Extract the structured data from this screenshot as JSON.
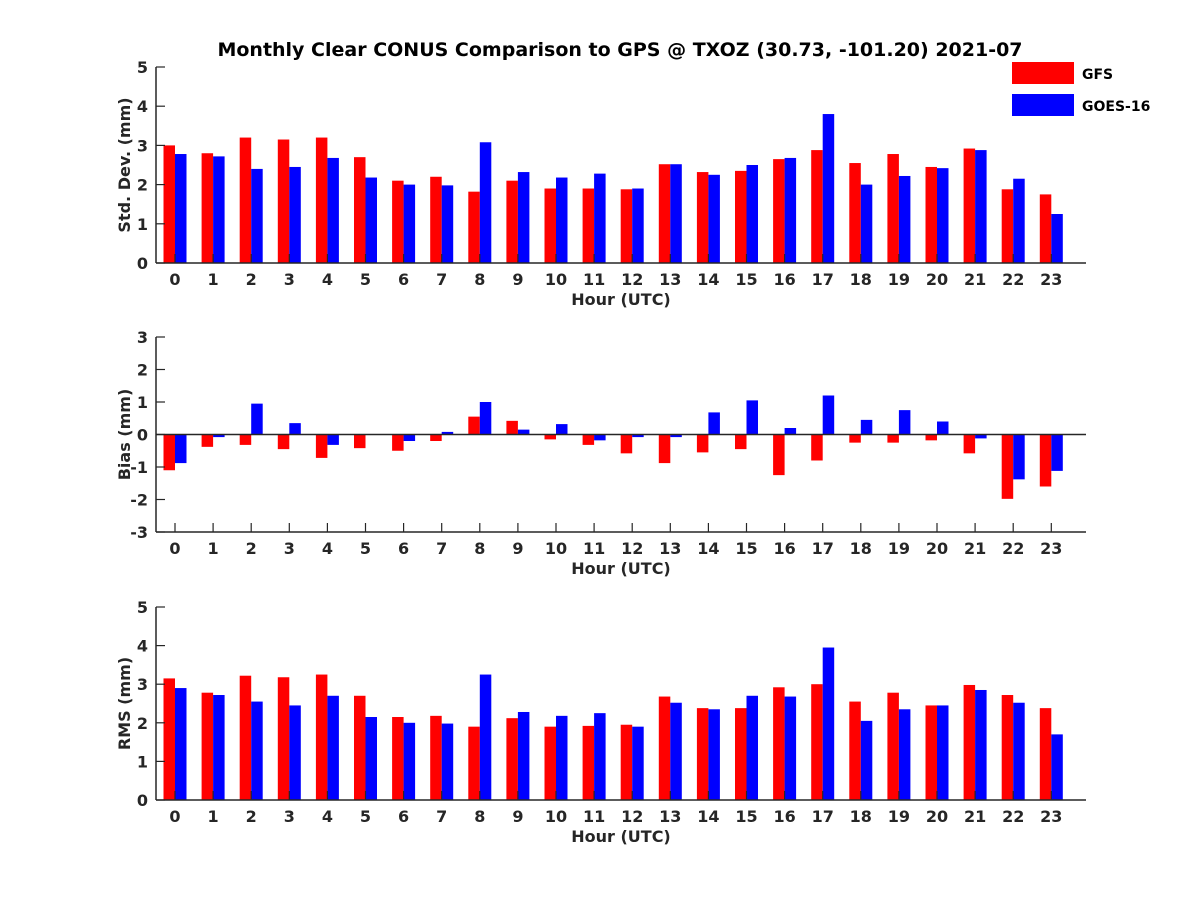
{
  "title": "Monthly Clear CONUS Comparison to GPS @ TXOZ (30.73, -101.20) 2021-07",
  "legend": [
    {
      "label": "GFS",
      "color": "#ff0000"
    },
    {
      "label": "GOES-16",
      "color": "#0000ff"
    }
  ],
  "chart_data": [
    {
      "type": "bar",
      "xlabel": "Hour (UTC)",
      "ylabel": "Std. Dev. (mm)",
      "ylim": [
        0,
        5
      ],
      "yticks": [
        0,
        1,
        2,
        3,
        4,
        5
      ],
      "categories": [
        "0",
        "1",
        "2",
        "3",
        "4",
        "5",
        "6",
        "7",
        "8",
        "9",
        "10",
        "11",
        "12",
        "13",
        "14",
        "15",
        "16",
        "17",
        "18",
        "19",
        "20",
        "21",
        "22",
        "23"
      ],
      "series": [
        {
          "name": "GFS",
          "values": [
            3.0,
            2.8,
            3.2,
            3.15,
            3.2,
            2.7,
            2.1,
            2.2,
            1.82,
            2.1,
            1.9,
            1.9,
            1.88,
            2.52,
            2.32,
            2.35,
            2.65,
            2.88,
            2.55,
            2.78,
            2.45,
            2.92,
            1.88,
            1.75
          ]
        },
        {
          "name": "GOES-16",
          "values": [
            2.78,
            2.72,
            2.4,
            2.45,
            2.68,
            2.18,
            2.0,
            1.98,
            3.08,
            2.32,
            2.18,
            2.28,
            1.9,
            2.52,
            2.25,
            2.5,
            2.68,
            3.8,
            2.0,
            2.22,
            2.42,
            2.88,
            2.15,
            1.25
          ]
        }
      ]
    },
    {
      "type": "bar",
      "xlabel": "Hour (UTC)",
      "ylabel": "Bias (mm)",
      "ylim": [
        -3,
        3
      ],
      "yticks": [
        -3,
        -2,
        -1,
        0,
        1,
        2,
        3
      ],
      "categories": [
        "0",
        "1",
        "2",
        "3",
        "4",
        "5",
        "6",
        "7",
        "8",
        "9",
        "10",
        "11",
        "12",
        "13",
        "14",
        "15",
        "16",
        "17",
        "18",
        "19",
        "20",
        "21",
        "22",
        "23"
      ],
      "series": [
        {
          "name": "GFS",
          "values": [
            -1.1,
            -0.38,
            -0.32,
            -0.45,
            -0.72,
            -0.42,
            -0.5,
            -0.2,
            0.55,
            0.42,
            -0.15,
            -0.32,
            -0.58,
            -0.88,
            -0.55,
            -0.45,
            -1.25,
            -0.8,
            -0.25,
            -0.25,
            -0.18,
            -0.58,
            -1.98,
            -1.6
          ]
        },
        {
          "name": "GOES-16",
          "values": [
            -0.88,
            -0.08,
            0.95,
            0.35,
            -0.32,
            0.0,
            -0.2,
            0.08,
            1.0,
            0.15,
            0.32,
            -0.18,
            -0.08,
            -0.08,
            0.68,
            1.05,
            0.2,
            1.2,
            0.45,
            0.75,
            0.4,
            -0.12,
            -1.38,
            -1.12
          ]
        }
      ]
    },
    {
      "type": "bar",
      "xlabel": "Hour (UTC)",
      "ylabel": "RMS (mm)",
      "ylim": [
        0,
        5
      ],
      "yticks": [
        0,
        1,
        2,
        3,
        4,
        5
      ],
      "categories": [
        "0",
        "1",
        "2",
        "3",
        "4",
        "5",
        "6",
        "7",
        "8",
        "9",
        "10",
        "11",
        "12",
        "13",
        "14",
        "15",
        "16",
        "17",
        "18",
        "19",
        "20",
        "21",
        "22",
        "23"
      ],
      "series": [
        {
          "name": "GFS",
          "values": [
            3.15,
            2.78,
            3.22,
            3.18,
            3.25,
            2.7,
            2.15,
            2.18,
            1.9,
            2.12,
            1.9,
            1.92,
            1.95,
            2.68,
            2.38,
            2.38,
            2.92,
            3.0,
            2.55,
            2.78,
            2.45,
            2.98,
            2.72,
            2.38
          ]
        },
        {
          "name": "GOES-16",
          "values": [
            2.9,
            2.72,
            2.55,
            2.45,
            2.7,
            2.15,
            2.0,
            1.98,
            3.25,
            2.28,
            2.18,
            2.25,
            1.9,
            2.52,
            2.35,
            2.7,
            2.68,
            3.95,
            2.05,
            2.35,
            2.45,
            2.85,
            2.52,
            1.7
          ]
        }
      ]
    }
  ]
}
